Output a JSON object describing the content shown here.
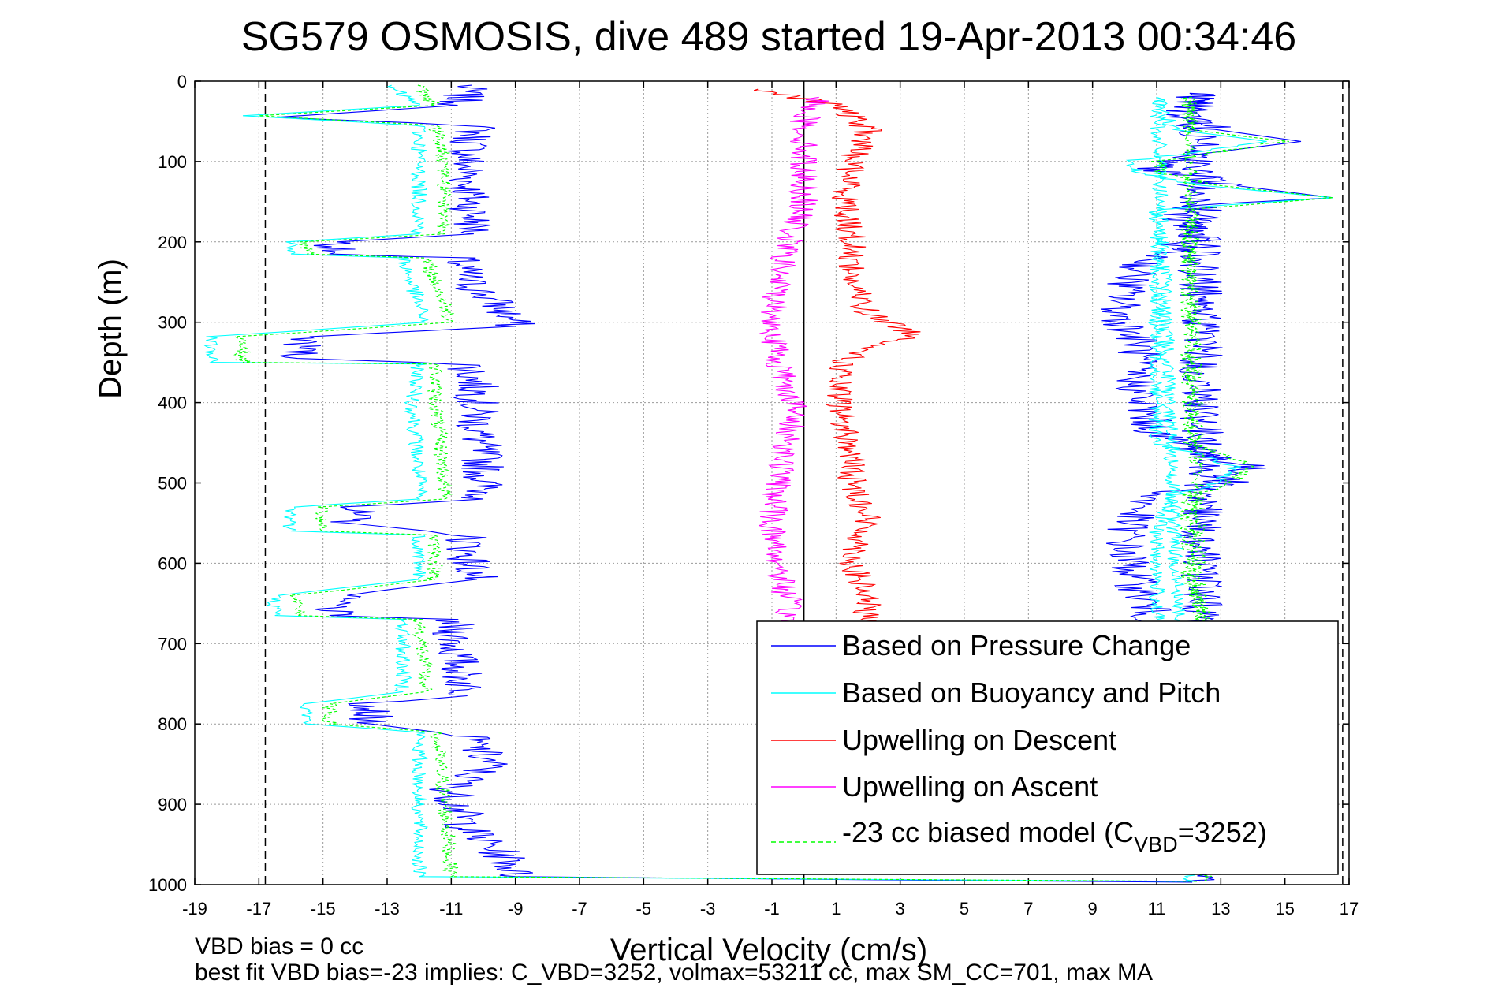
{
  "chart_data": {
    "type": "line",
    "title": "SG579 OSMOSIS, dive 489 started 19-Apr-2013 00:34:46",
    "xlabel": "Vertical Velocity (cm/s)",
    "ylabel": "Depth (m)",
    "xlim": [
      -19,
      17
    ],
    "ylim": [
      0,
      1000
    ],
    "y_reversed": true,
    "grid": true,
    "x_ticks": [
      -19,
      -17,
      -15,
      -13,
      -11,
      -9,
      -7,
      -5,
      -3,
      -1,
      1,
      3,
      5,
      7,
      9,
      11,
      13,
      15,
      17
    ],
    "y_ticks": [
      0,
      100,
      200,
      300,
      400,
      500,
      600,
      700,
      800,
      900,
      1000
    ],
    "reference_lines": [
      {
        "x": -16.8,
        "style": "dashed"
      },
      {
        "x": 0,
        "style": "solid"
      },
      {
        "x": 16.8,
        "style": "dashed"
      }
    ],
    "legend_position": "bottom-right",
    "series": [
      {
        "name": "Based on Pressure Change",
        "color": "#0000ff",
        "noise": 0.7,
        "points": [
          [
            -10.5,
            5
          ],
          [
            -10.8,
            30
          ],
          [
            -16.5,
            45
          ],
          [
            -10.2,
            55
          ],
          [
            -10.5,
            90
          ],
          [
            -10.5,
            130
          ],
          [
            -10.3,
            170
          ],
          [
            -10.3,
            190
          ],
          [
            -14.5,
            200
          ],
          [
            -14.8,
            215
          ],
          [
            -10.8,
            220
          ],
          [
            -10.5,
            250
          ],
          [
            -9.5,
            280
          ],
          [
            -9.0,
            305
          ],
          [
            -15.5,
            318
          ],
          [
            -15.8,
            345
          ],
          [
            -10.5,
            352
          ],
          [
            -10.2,
            380
          ],
          [
            -10.2,
            430
          ],
          [
            -10.0,
            480
          ],
          [
            -10.0,
            520
          ],
          [
            -14.0,
            530
          ],
          [
            -14.2,
            550
          ],
          [
            -10.5,
            565
          ],
          [
            -10.5,
            590
          ],
          [
            -10.2,
            620
          ],
          [
            -14.5,
            640
          ],
          [
            -14.8,
            665
          ],
          [
            -11.0,
            670
          ],
          [
            -10.8,
            720
          ],
          [
            -10.5,
            765
          ],
          [
            -13.5,
            775
          ],
          [
            -13.5,
            800
          ],
          [
            -10.5,
            815
          ],
          [
            -9.8,
            850
          ],
          [
            -11.0,
            880
          ],
          [
            -10.5,
            930
          ],
          [
            -9.2,
            970
          ],
          [
            -9.0,
            990
          ],
          [
            5.0,
            995
          ],
          [
            12.5,
            997
          ],
          [
            12.3,
            15
          ],
          [
            11.8,
            40
          ],
          [
            12.8,
            60
          ],
          [
            15.5,
            75
          ],
          [
            11.5,
            95
          ],
          [
            11.0,
            110
          ],
          [
            13.5,
            130
          ],
          [
            16.5,
            145
          ],
          [
            11.8,
            155
          ],
          [
            12.0,
            200
          ],
          [
            10.5,
            230
          ],
          [
            10.0,
            260
          ],
          [
            9.8,
            290
          ],
          [
            10.5,
            330
          ],
          [
            10.3,
            360
          ],
          [
            10.5,
            400
          ],
          [
            11.0,
            440
          ],
          [
            13.8,
            480
          ],
          [
            13.0,
            505
          ],
          [
            10.8,
            515
          ],
          [
            10.2,
            545
          ],
          [
            10.0,
            580
          ],
          [
            10.3,
            620
          ],
          [
            10.8,
            660
          ],
          [
            11.0,
            680
          ]
        ]
      },
      {
        "name": "Based on Buoyancy and Pitch",
        "color": "#00ffff",
        "noise": 0.25,
        "points": [
          [
            -13.0,
            5
          ],
          [
            -12.0,
            30
          ],
          [
            -17.5,
            43
          ],
          [
            -12.0,
            55
          ],
          [
            -12.0,
            100
          ],
          [
            -12.0,
            190
          ],
          [
            -16.0,
            200
          ],
          [
            -16.0,
            215
          ],
          [
            -12.5,
            220
          ],
          [
            -12.0,
            280
          ],
          [
            -11.8,
            300
          ],
          [
            -18.5,
            318
          ],
          [
            -18.5,
            350
          ],
          [
            -12.0,
            352
          ],
          [
            -12.2,
            400
          ],
          [
            -12.0,
            500
          ],
          [
            -12.0,
            520
          ],
          [
            -16.0,
            530
          ],
          [
            -16.0,
            560
          ],
          [
            -12.0,
            565
          ],
          [
            -12.0,
            620
          ],
          [
            -16.5,
            640
          ],
          [
            -16.5,
            665
          ],
          [
            -12.5,
            670
          ],
          [
            -12.5,
            760
          ],
          [
            -15.5,
            775
          ],
          [
            -15.5,
            800
          ],
          [
            -12.0,
            810
          ],
          [
            -12.0,
            900
          ],
          [
            -12.0,
            990
          ],
          [
            12.0,
            996
          ],
          [
            11.0,
            20
          ],
          [
            11.5,
            60
          ],
          [
            14.5,
            75
          ],
          [
            10.0,
            100
          ],
          [
            10.5,
            115
          ],
          [
            12.5,
            130
          ],
          [
            16.5,
            145
          ],
          [
            11.0,
            160
          ],
          [
            11.0,
            250
          ],
          [
            11.0,
            350
          ],
          [
            11.0,
            450
          ],
          [
            13.5,
            480
          ],
          [
            12.5,
            505
          ],
          [
            11.5,
            515
          ],
          [
            11.0,
            560
          ],
          [
            11.0,
            620
          ],
          [
            11.0,
            670
          ]
        ]
      },
      {
        "name": "Upwelling on Descent",
        "color": "#ff0000",
        "noise": 0.45,
        "points": [
          [
            -1.5,
            10
          ],
          [
            1.0,
            30
          ],
          [
            2.0,
            60
          ],
          [
            1.5,
            100
          ],
          [
            1.3,
            150
          ],
          [
            1.5,
            200
          ],
          [
            1.5,
            250
          ],
          [
            2.0,
            290
          ],
          [
            3.5,
            315
          ],
          [
            1.3,
            345
          ],
          [
            1.0,
            380
          ],
          [
            1.2,
            420
          ],
          [
            1.5,
            470
          ],
          [
            1.5,
            500
          ],
          [
            2.0,
            540
          ],
          [
            1.5,
            600
          ],
          [
            2.0,
            650
          ],
          [
            1.8,
            675
          ]
        ]
      },
      {
        "name": "Upwelling on Ascent",
        "color": "#ff00ff",
        "noise": 0.45,
        "points": [
          [
            0.5,
            20
          ],
          [
            0.0,
            50
          ],
          [
            0.0,
            100
          ],
          [
            0.0,
            150
          ],
          [
            -0.5,
            200
          ],
          [
            -0.8,
            250
          ],
          [
            -1.0,
            300
          ],
          [
            -0.8,
            350
          ],
          [
            -0.3,
            400
          ],
          [
            -0.5,
            450
          ],
          [
            -0.8,
            500
          ],
          [
            -1.0,
            550
          ],
          [
            -0.8,
            600
          ],
          [
            -0.5,
            650
          ],
          [
            -0.5,
            675
          ]
        ]
      },
      {
        "name": "-23 cc biased model (C_VBD=3252)",
        "color": "#00ff00",
        "dashed": true,
        "noise": 0.25,
        "points": [
          [
            -12.0,
            5
          ],
          [
            -11.5,
            30
          ],
          [
            -17.0,
            43
          ],
          [
            -11.5,
            55
          ],
          [
            -11.2,
            100
          ],
          [
            -11.2,
            190
          ],
          [
            -15.5,
            200
          ],
          [
            -15.5,
            215
          ],
          [
            -11.8,
            220
          ],
          [
            -11.2,
            280
          ],
          [
            -11.0,
            300
          ],
          [
            -17.5,
            318
          ],
          [
            -17.5,
            350
          ],
          [
            -11.5,
            352
          ],
          [
            -11.5,
            400
          ],
          [
            -11.2,
            500
          ],
          [
            -11.2,
            520
          ],
          [
            -15.0,
            530
          ],
          [
            -15.0,
            560
          ],
          [
            -11.5,
            565
          ],
          [
            -11.5,
            620
          ],
          [
            -15.8,
            640
          ],
          [
            -15.8,
            665
          ],
          [
            -12.0,
            670
          ],
          [
            -11.8,
            760
          ],
          [
            -14.8,
            775
          ],
          [
            -14.8,
            800
          ],
          [
            -11.5,
            810
          ],
          [
            -11.2,
            900
          ],
          [
            -11.0,
            990
          ],
          [
            12.5,
            996
          ],
          [
            12.0,
            20
          ],
          [
            12.0,
            60
          ],
          [
            15.0,
            75
          ],
          [
            11.0,
            100
          ],
          [
            11.2,
            115
          ],
          [
            13.0,
            130
          ],
          [
            16.5,
            145
          ],
          [
            12.0,
            160
          ],
          [
            12.0,
            250
          ],
          [
            12.0,
            350
          ],
          [
            12.0,
            450
          ],
          [
            14.0,
            480
          ],
          [
            13.0,
            505
          ],
          [
            12.0,
            515
          ],
          [
            12.0,
            560
          ],
          [
            12.0,
            620
          ],
          [
            12.5,
            670
          ]
        ]
      }
    ],
    "annotations": [
      "VBD bias = 0 cc",
      "best fit VBD bias=-23 implies: C_VBD=3252, volmax=53211 cc, max SM_CC=701, max MA"
    ]
  },
  "legend": {
    "entries": [
      "Based on Pressure Change",
      "Based on Buoyancy and Pitch",
      "Upwelling on Descent",
      "Upwelling on Ascent"
    ],
    "model_entry": {
      "prefix": "-23 cc biased model (C",
      "sub": "VBD",
      "suffix": "=3252)"
    }
  }
}
